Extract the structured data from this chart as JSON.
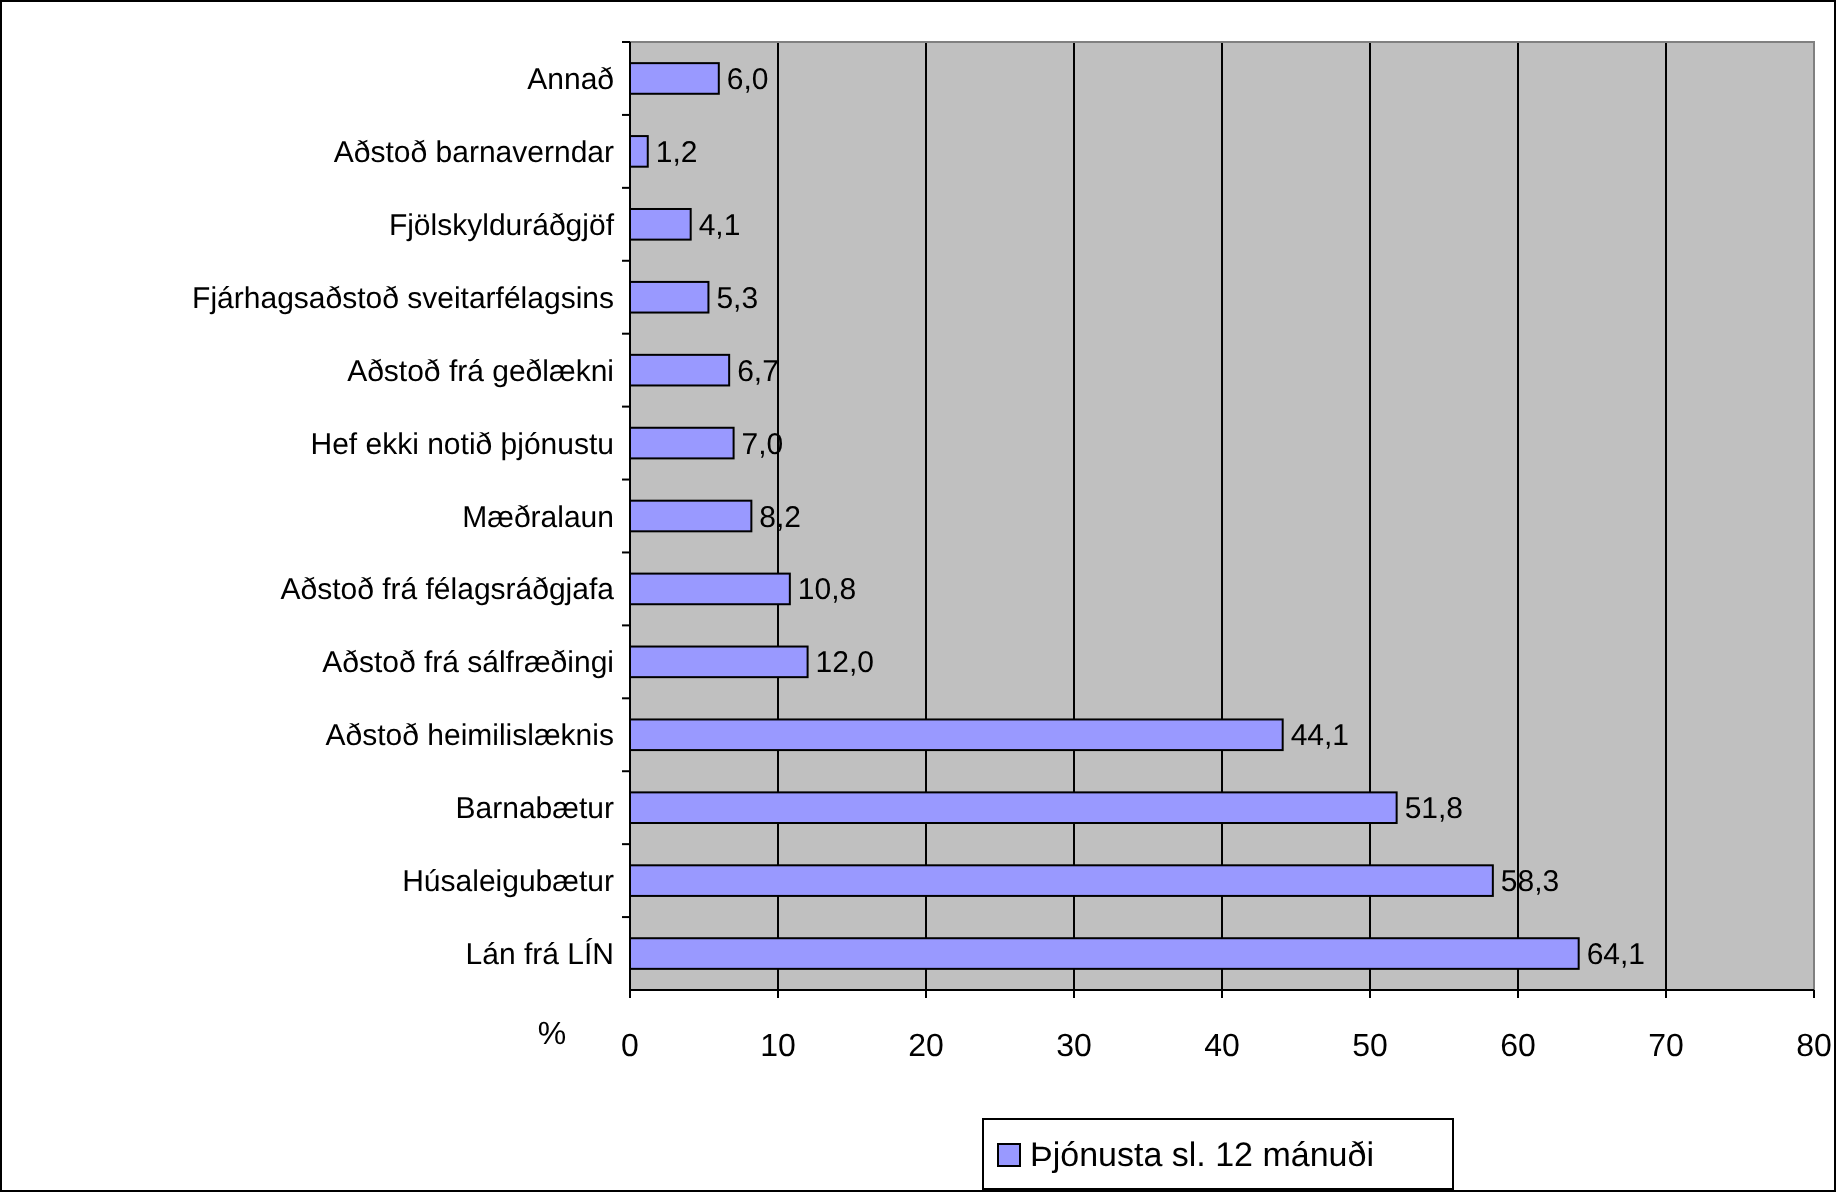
{
  "chart_data": {
    "type": "bar",
    "orientation": "horizontal",
    "xlabel": "%",
    "categories": [
      "Annað",
      "Aðstoð barnaverndar",
      "Fjölskylduráðgjöf",
      "Fjárhagsaðstoð sveitarfélagsins",
      "Aðstoð frá geðlækni",
      "Hef ekki notið þjónustu",
      "Mæðralaun",
      "Aðstoð frá félagsráðgjafa",
      "Aðstoð frá sálfræðingi",
      "Aðstoð heimilislæknis",
      "Barnabætur",
      "Húsaleigubætur",
      "Lán frá LÍN"
    ],
    "series": [
      {
        "name": "Þjónusta sl. 12 mánuði",
        "color": "#9999ff",
        "values": [
          6.0,
          1.2,
          4.1,
          5.3,
          6.7,
          7.0,
          8.2,
          10.8,
          12.0,
          44.1,
          51.8,
          58.3,
          64.1
        ],
        "value_labels": [
          "6,0",
          "1,2",
          "4,1",
          "5,3",
          "6,7",
          "7,0",
          "8,2",
          "10,8",
          "12,0",
          "44,1",
          "51,8",
          "58,3",
          "64,1"
        ]
      }
    ],
    "xlim": [
      0,
      80
    ],
    "xticks": [
      0,
      10,
      20,
      30,
      40,
      50,
      60,
      70,
      80
    ],
    "grid": "x",
    "legend": "bottom"
  }
}
